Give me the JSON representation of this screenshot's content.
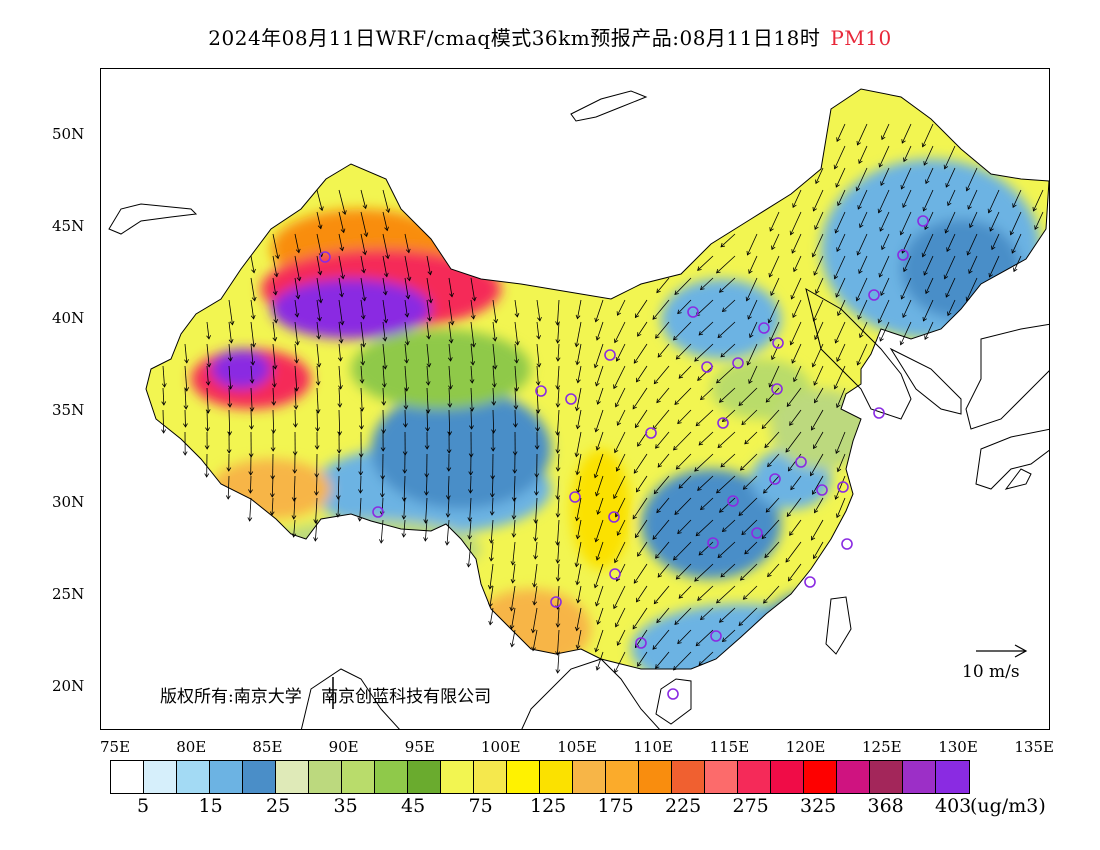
{
  "header": {
    "title": "2024年08月11日WRF/cmaq模式36km预报产品:08月11日18时",
    "pollutant": "PM10",
    "pollutant_color": "#e8283a"
  },
  "axes": {
    "lon_labels": [
      "75E",
      "80E",
      "85E",
      "90E",
      "95E",
      "100E",
      "105E",
      "110E",
      "115E",
      "120E",
      "125E",
      "130E",
      "135E"
    ],
    "lat_labels": [
      "50N",
      "45N",
      "40N",
      "35N",
      "30N",
      "25N",
      "20N"
    ]
  },
  "map": {
    "copyright_owner": "版权所有:南京大学",
    "copyright_company": "南京创蓝科技有限公司",
    "wind_scale_label": "10 m/s",
    "station_marker_color": "#8a2be2",
    "station_marker_count": 33
  },
  "colorbar": {
    "colors": [
      "#ffffff",
      "#d6effb",
      "#a3daf4",
      "#6cb3e3",
      "#4a8ec8",
      "#dfeab8",
      "#bcd97e",
      "#b9dc6b",
      "#8fc94a",
      "#6aab2e",
      "#f2f551",
      "#f5e84d",
      "#fff200",
      "#fbe100",
      "#f7b547",
      "#fbab2b",
      "#f98d0e",
      "#f06030",
      "#fc6b6b",
      "#f52a59",
      "#f00c47",
      "#fe0000",
      "#cf1380",
      "#a3265a",
      "#9c2fc7",
      "#8a2be2"
    ],
    "labels": [
      "5",
      "15",
      "25",
      "35",
      "45",
      "75",
      "125",
      "175",
      "225",
      "275",
      "325",
      "368",
      "403"
    ],
    "unit": "(ug/m3)"
  }
}
